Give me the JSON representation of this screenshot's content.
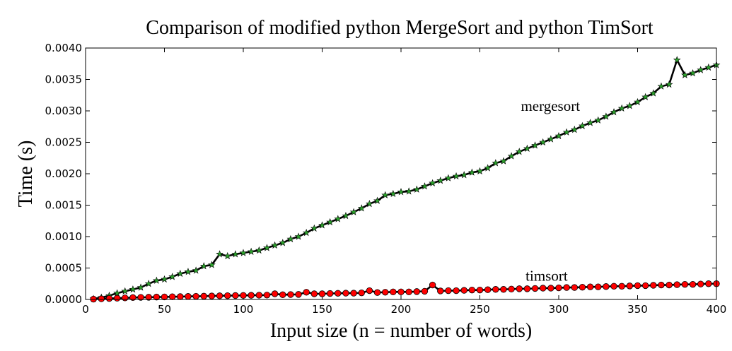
{
  "chart_data": {
    "type": "line",
    "title": "Comparison of modified python MergeSort and python TimSort",
    "xlabel": "Input size (n = number of words)",
    "ylabel": "Time (s)",
    "xlim": [
      0,
      400
    ],
    "ylim": [
      0,
      0.004
    ],
    "x_ticks": [
      0,
      50,
      100,
      150,
      200,
      250,
      300,
      350,
      400
    ],
    "y_ticks": [
      0.0,
      0.0005,
      0.001,
      0.0015,
      0.002,
      0.0025,
      0.003,
      0.0035,
      0.004
    ],
    "x_tick_labels": [
      "0",
      "50",
      "100",
      "150",
      "200",
      "250",
      "300",
      "350",
      "400"
    ],
    "y_tick_labels": [
      "0.0000",
      "0.0005",
      "0.0010",
      "0.0015",
      "0.0020",
      "0.0025",
      "0.0030",
      "0.0035",
      "0.0040"
    ],
    "grid": false,
    "legend": "none",
    "annotations": [
      {
        "text": "mergesort",
        "x": 276,
        "y": 0.003
      },
      {
        "text": "timsort",
        "x": 279,
        "y": 0.0003
      }
    ],
    "x": [
      5,
      10,
      15,
      20,
      25,
      30,
      35,
      40,
      45,
      50,
      55,
      60,
      65,
      70,
      75,
      80,
      85,
      90,
      95,
      100,
      105,
      110,
      115,
      120,
      125,
      130,
      135,
      140,
      145,
      150,
      155,
      160,
      165,
      170,
      175,
      180,
      185,
      190,
      195,
      200,
      205,
      210,
      215,
      220,
      225,
      230,
      235,
      240,
      245,
      250,
      255,
      260,
      265,
      270,
      275,
      280,
      285,
      290,
      295,
      300,
      305,
      310,
      315,
      320,
      325,
      330,
      335,
      340,
      345,
      350,
      355,
      360,
      365,
      370,
      375,
      380,
      385,
      390,
      395,
      400
    ],
    "series": [
      {
        "name": "mergesort",
        "line_color": "#000000",
        "marker": "star",
        "marker_color": "#2ca02c",
        "values": [
          1e-05,
          3e-05,
          6e-05,
          0.0001,
          0.00013,
          0.00016,
          0.00019,
          0.00025,
          0.0003,
          0.00032,
          0.00036,
          0.00041,
          0.00044,
          0.00046,
          0.00053,
          0.00055,
          0.00072,
          0.00069,
          0.00072,
          0.00074,
          0.00076,
          0.00078,
          0.00082,
          0.00086,
          0.0009,
          0.00096,
          0.001,
          0.00106,
          0.00113,
          0.00118,
          0.00123,
          0.00128,
          0.00133,
          0.00139,
          0.00145,
          0.00152,
          0.00157,
          0.00166,
          0.00168,
          0.00171,
          0.00172,
          0.00175,
          0.0018,
          0.00185,
          0.00189,
          0.00193,
          0.00196,
          0.00198,
          0.00202,
          0.00204,
          0.00209,
          0.00217,
          0.0022,
          0.00228,
          0.00235,
          0.0024,
          0.00245,
          0.0025,
          0.00255,
          0.0026,
          0.00266,
          0.0027,
          0.00276,
          0.00281,
          0.00285,
          0.00291,
          0.00298,
          0.00304,
          0.00308,
          0.00314,
          0.00322,
          0.00328,
          0.00339,
          0.00342,
          0.00381,
          0.00357,
          0.0036,
          0.00365,
          0.00369,
          0.00373
        ]
      },
      {
        "name": "timsort",
        "line_color": "#000000",
        "marker": "circle",
        "marker_color": "#ff0000",
        "values": [
          5e-06,
          1e-05,
          1.5e-05,
          2e-05,
          2.5e-05,
          3e-05,
          3.3e-05,
          3.5e-05,
          3.8e-05,
          4e-05,
          4.3e-05,
          4.5e-05,
          4.8e-05,
          5e-05,
          5.2e-05,
          5.5e-05,
          5.8e-05,
          6e-05,
          6.2e-05,
          6.4e-05,
          6.6e-05,
          6.8e-05,
          7e-05,
          9e-05,
          7.5e-05,
          7.8e-05,
          8e-05,
          0.000115,
          9e-05,
          9e-05,
          9.5e-05,
          9.8e-05,
          0.0001,
          0.0001,
          0.000105,
          0.00014,
          0.00011,
          0.000115,
          0.00012,
          0.00012,
          0.00012,
          0.000125,
          0.00013,
          0.00023,
          0.000135,
          0.00014,
          0.00014,
          0.000145,
          0.00015,
          0.00015,
          0.000155,
          0.00016,
          0.00016,
          0.000165,
          0.00017,
          0.00017,
          0.000175,
          0.00018,
          0.00018,
          0.000185,
          0.00019,
          0.00019,
          0.000195,
          0.0002,
          0.0002,
          0.000205,
          0.00021,
          0.00021,
          0.000215,
          0.00022,
          0.00022,
          0.000225,
          0.00023,
          0.00023,
          0.000235,
          0.00024,
          0.00024,
          0.000245,
          0.00025,
          0.00025
        ]
      }
    ]
  }
}
